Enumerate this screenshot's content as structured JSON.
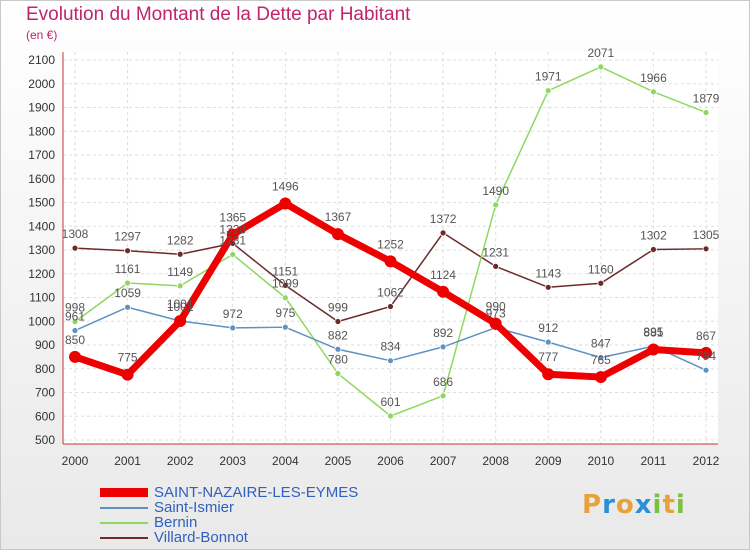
{
  "title": "Evolution du Montant de la Dette par Habitant",
  "subtitle": "(en €)",
  "logo": {
    "letters": [
      "P",
      "r",
      "o",
      "x",
      "i",
      "t",
      "i"
    ],
    "colors": [
      "#e8a23a",
      "#2b8fd6",
      "#e8a23a",
      "#2b8fd6",
      "#7cc242",
      "#e8a23a",
      "#7cc242"
    ]
  },
  "chart_data": {
    "type": "line",
    "x": [
      "2000",
      "2001",
      "2002",
      "2003",
      "2004",
      "2005",
      "2006",
      "2007",
      "2008",
      "2009",
      "2010",
      "2011",
      "2012"
    ],
    "ylim": [
      500,
      2100
    ],
    "yticks": [
      500,
      600,
      700,
      800,
      900,
      1000,
      1100,
      1200,
      1300,
      1400,
      1500,
      1600,
      1700,
      1800,
      1900,
      2000,
      2100
    ],
    "grid": true,
    "legend_position": "bottom-left",
    "series": [
      {
        "name": "SAINT-NAZAIRE-LES-EYMES",
        "color": "#ee0000",
        "values": [
          850,
          775,
          1001,
          1365,
          1496,
          1367,
          1252,
          1124,
          990,
          777,
          765,
          881,
          867
        ]
      },
      {
        "name": "Saint-Ismier",
        "color": "#5d92c2",
        "values": [
          961,
          1059,
          1001,
          972,
          975,
          882,
          834,
          892,
          973,
          912,
          847,
          895,
          794
        ]
      },
      {
        "name": "Bernin",
        "color": "#8ed860",
        "values": [
          998,
          1161,
          1149,
          1281,
          1099,
          780,
          601,
          686,
          1490,
          1971,
          2071,
          1966,
          1879
        ]
      },
      {
        "name": "Villard-Bonnot",
        "color": "#6e2a2a",
        "values": [
          1308,
          1297,
          1282,
          1328,
          1151,
          999,
          1062,
          1372,
          1231,
          1143,
          1160,
          1302,
          1305
        ]
      }
    ]
  }
}
